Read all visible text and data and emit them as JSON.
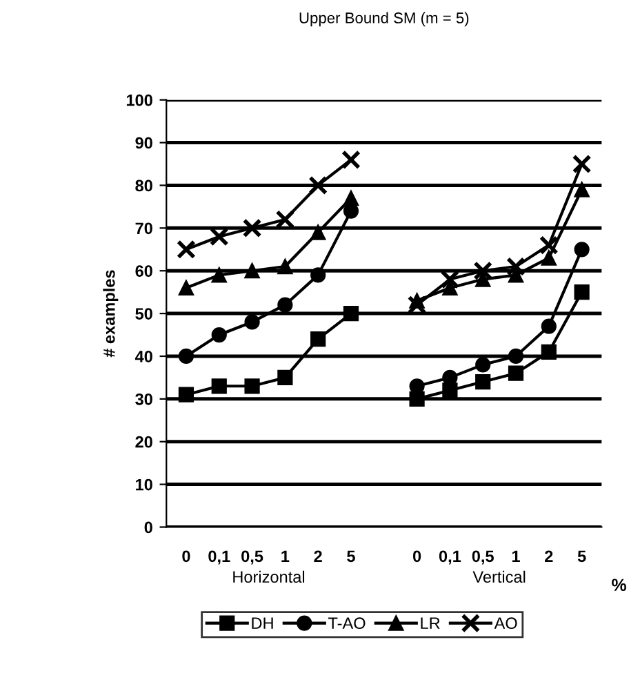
{
  "chart_data": {
    "type": "line",
    "title": "Upper Bound SM (m = 5)",
    "ylabel": "# examples",
    "xlabel": "%",
    "categories": [
      "0",
      "0,1",
      "0,5",
      "1",
      "2",
      "5",
      null,
      "0",
      "0,1",
      "0,5",
      "1",
      "2",
      "5"
    ],
    "series": [
      {
        "name": "DH",
        "color": "#000000",
        "marker": "square",
        "values": [
          31,
          33,
          33,
          35,
          44,
          50,
          null,
          30,
          32,
          34,
          36,
          41,
          55
        ]
      },
      {
        "name": "T-AO",
        "color": "#000000",
        "marker": "circle",
        "values": [
          40,
          45,
          48,
          52,
          59,
          74,
          null,
          33,
          35,
          38,
          40,
          47,
          65
        ]
      },
      {
        "name": "LR",
        "color": "#000000",
        "marker": "triangle",
        "values": [
          56,
          59,
          60,
          61,
          69,
          77,
          null,
          53,
          56,
          58,
          59,
          63,
          79
        ]
      },
      {
        "name": "AO",
        "color": "#000000",
        "marker": "cross",
        "values": [
          65,
          68,
          70,
          72,
          80,
          86,
          null,
          52,
          58,
          60,
          61,
          66,
          85
        ]
      }
    ],
    "annotations": [
      "Horizontal",
      "Vertical"
    ],
    "ylim": [
      0,
      100
    ],
    "yticks": [
      0,
      10,
      20,
      30,
      40,
      50,
      60,
      70,
      80,
      90,
      100
    ],
    "grid": "y",
    "legend": "bottom",
    "line_style": "solid"
  }
}
